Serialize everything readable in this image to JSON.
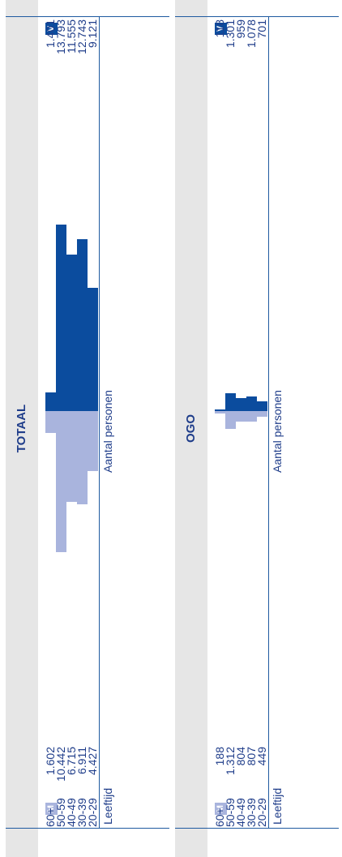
{
  "chart_data": [
    {
      "type": "bar",
      "title": "OGO",
      "xlabel": "Leeftijd",
      "ylabel": "Aantal personen",
      "categories": [
        "60+",
        "50-59",
        "40-49",
        "30-39",
        "20-29"
      ],
      "series": [
        {
          "name": "M",
          "values": [
            188,
            1312,
            804,
            807,
            449
          ],
          "labels": [
            "188",
            "1.312",
            "804",
            "807",
            "449"
          ],
          "color": "#a9b4dd"
        },
        {
          "name": "V",
          "values": [
            118,
            1301,
            959,
            1078,
            701
          ],
          "labels": [
            "118",
            "1.301",
            "959",
            "1.078",
            "701"
          ],
          "color": "#0b4c9e"
        }
      ],
      "ylim": [
        0,
        13793
      ]
    },
    {
      "type": "bar",
      "title": "TOTAAL",
      "xlabel": "Leeftijd",
      "ylabel": "Aantal personen",
      "categories": [
        "60+",
        "50-59",
        "40-49",
        "30-39",
        "20-29"
      ],
      "series": [
        {
          "name": "M",
          "values": [
            1602,
            10442,
            6715,
            6911,
            4427
          ],
          "labels": [
            "1.602",
            "10.442",
            "6.715",
            "6.911",
            "4.427"
          ],
          "color": "#a9b4dd"
        },
        {
          "name": "V",
          "values": [
            1401,
            13793,
            11555,
            12743,
            9121
          ],
          "labels": [
            "1.401",
            "13.793",
            "11.555",
            "12.743",
            "9.121"
          ],
          "color": "#0b4c9e"
        }
      ],
      "ylim": [
        0,
        13793
      ]
    }
  ]
}
